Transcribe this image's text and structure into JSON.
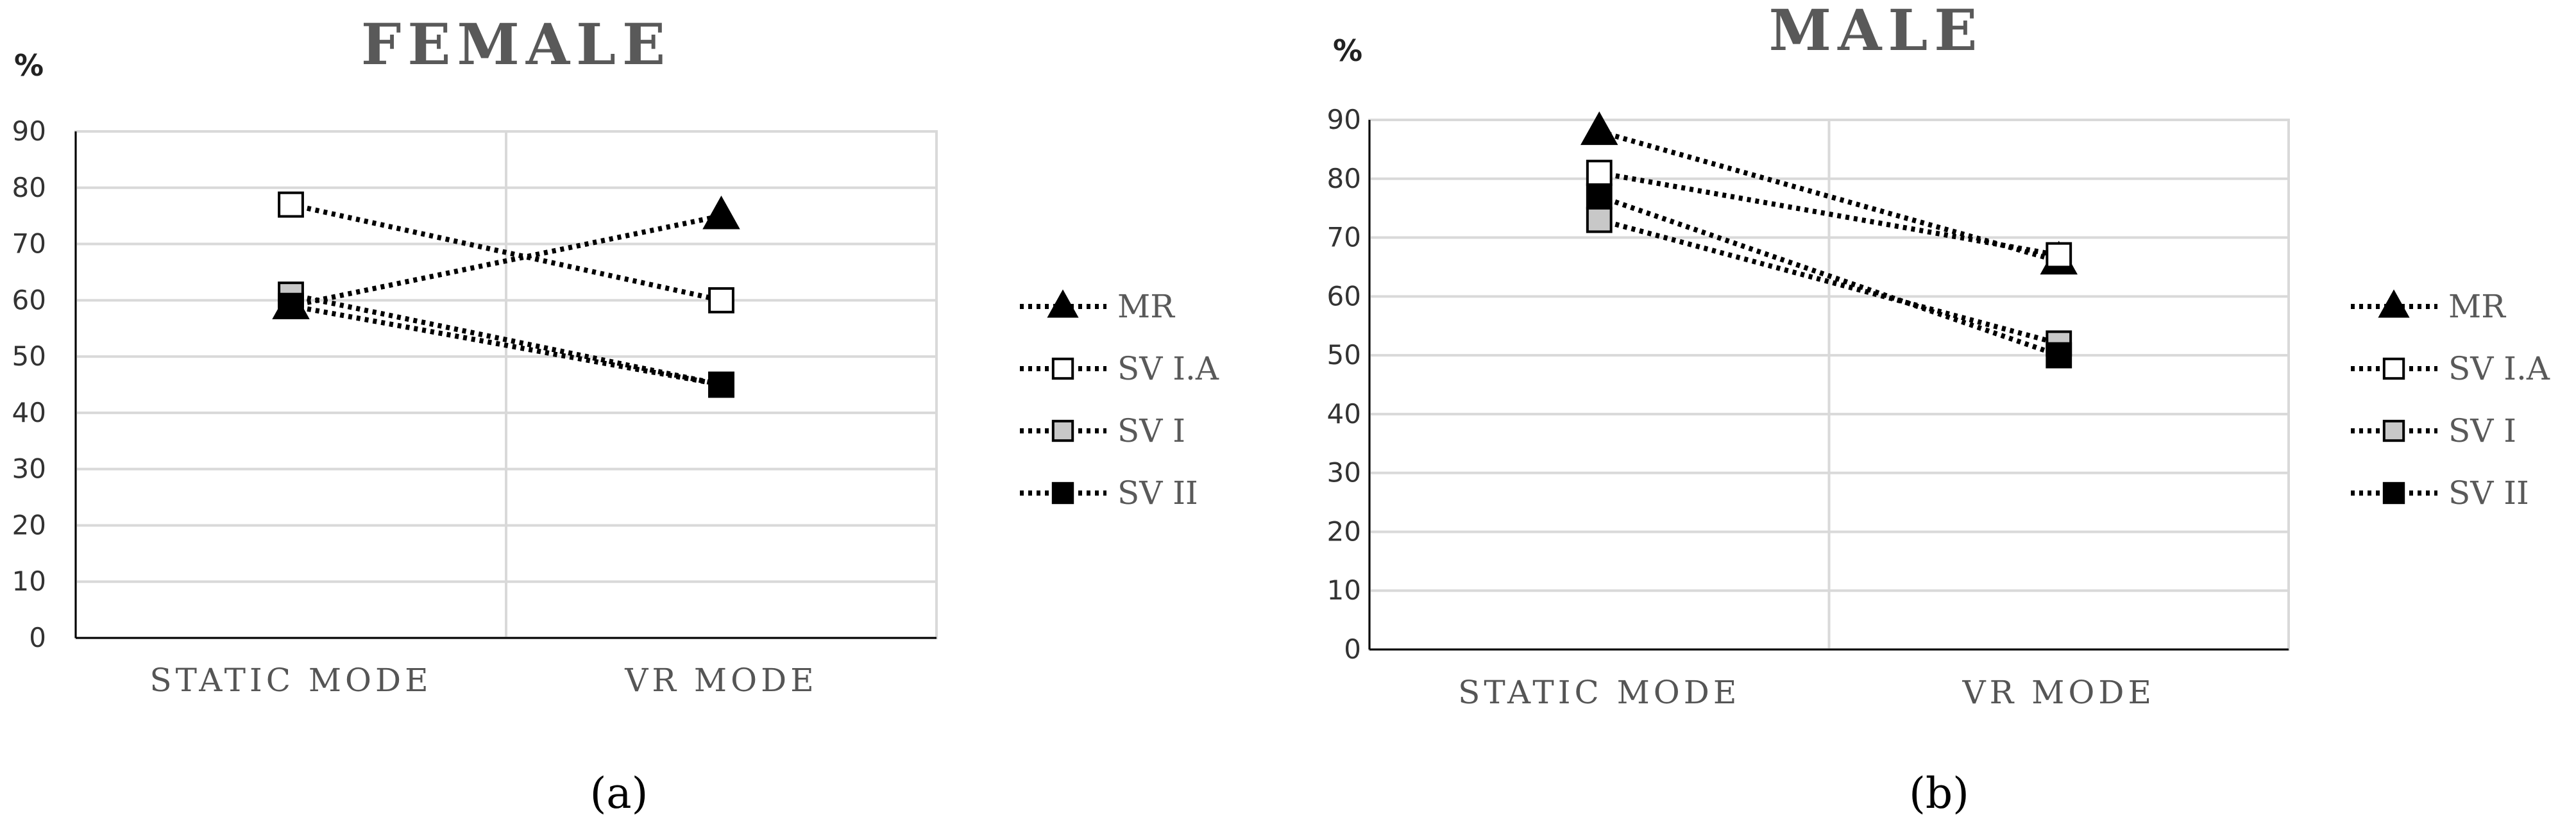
{
  "caption_a": "(a)",
  "caption_b": "(b)",
  "series_styles": [
    {
      "name": "MR",
      "marker": "triangle",
      "fill": "#000000"
    },
    {
      "name": "SV I.A",
      "marker": "square",
      "fill": "#ffffff"
    },
    {
      "name": "SV I",
      "marker": "square",
      "fill": "#c8c8c8"
    },
    {
      "name": "SV II",
      "marker": "square",
      "fill": "#000000"
    }
  ],
  "chart_data": [
    {
      "type": "line",
      "title": "FEMALE",
      "ylabel": "%",
      "xlabel": "",
      "categories": [
        "STATIC MODE",
        "VR MODE"
      ],
      "ylim": [
        0,
        90
      ],
      "yticks": [
        0,
        10,
        20,
        30,
        40,
        50,
        60,
        70,
        80,
        90
      ],
      "grid": true,
      "legend_position": "right",
      "series": [
        {
          "name": "MR",
          "values": [
            59,
            75
          ]
        },
        {
          "name": "SV I.A",
          "values": [
            77,
            60
          ]
        },
        {
          "name": "SV I",
          "values": [
            61,
            45
          ]
        },
        {
          "name": "SV II",
          "values": [
            59,
            45
          ]
        }
      ]
    },
    {
      "type": "line",
      "title": "MALE",
      "ylabel": "%",
      "xlabel": "",
      "categories": [
        "STATIC MODE",
        "VR MODE"
      ],
      "ylim": [
        0,
        90
      ],
      "yticks": [
        0,
        10,
        20,
        30,
        40,
        50,
        60,
        70,
        80,
        90
      ],
      "grid": true,
      "legend_position": "right",
      "series": [
        {
          "name": "MR",
          "values": [
            88,
            66
          ]
        },
        {
          "name": "SV I.A",
          "values": [
            81,
            67
          ]
        },
        {
          "name": "SV I",
          "values": [
            73,
            52
          ]
        },
        {
          "name": "SV II",
          "values": [
            77,
            50
          ]
        }
      ]
    }
  ]
}
